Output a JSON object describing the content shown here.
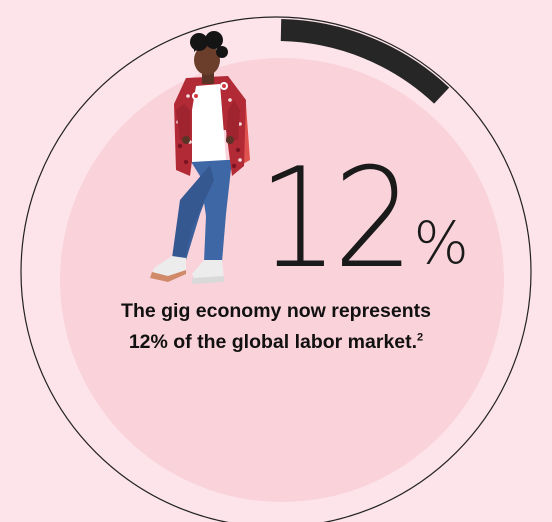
{
  "chart_data": {
    "type": "pie",
    "value": 12,
    "unit": "%",
    "max": 100,
    "colors": {
      "background": "#fce4ea",
      "inner_disc": "#fad2da",
      "progress_arc": "#262626",
      "outline": "#222222"
    }
  },
  "stat": {
    "number": "12",
    "unit": "%"
  },
  "caption": {
    "line1": "The gig economy now represents",
    "line2": "12% of the global labor market.",
    "footnote": "2"
  },
  "illustration": {
    "icon": "walking-woman-illustration"
  }
}
